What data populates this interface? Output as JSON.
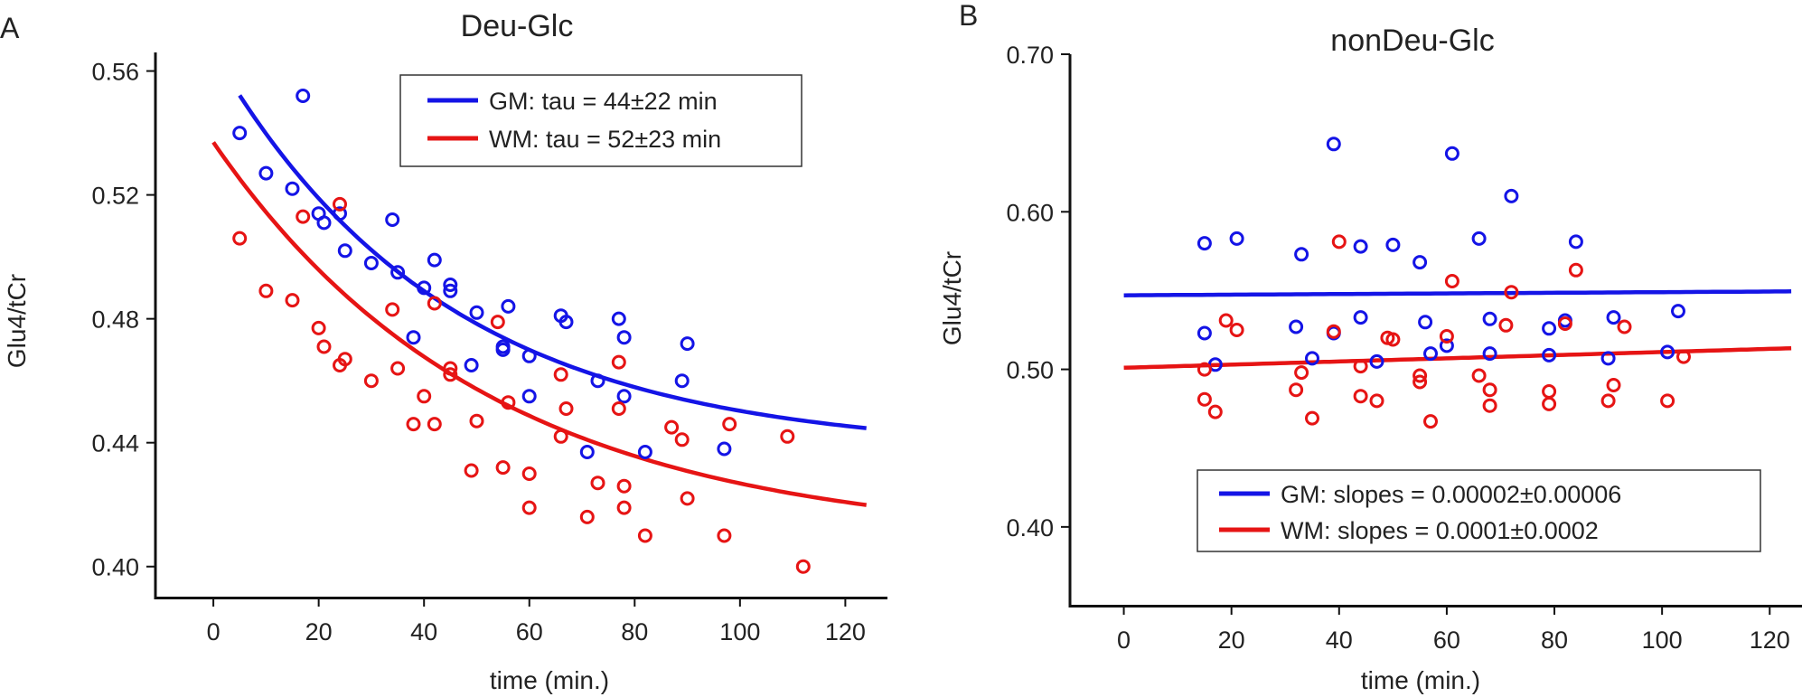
{
  "colors": {
    "gm": "#1414e6",
    "wm": "#e61414",
    "axis": "#111111"
  },
  "chart_data": [
    {
      "type": "scatter",
      "panel": "A",
      "title": "Deu-Glc",
      "xlabel": "time (min.)",
      "ylabel": "Glu4/tCr",
      "xlim": [
        -11,
        128
      ],
      "ylim": [
        0.39,
        0.566
      ],
      "xticks": [
        0,
        20,
        40,
        60,
        80,
        100,
        120
      ],
      "yticks": [
        0.4,
        0.44,
        0.48,
        0.52,
        0.56
      ],
      "ytick_labels": [
        "0.40",
        "0.44",
        "0.48",
        "0.52",
        "0.56"
      ],
      "legend": [
        {
          "label": "GM: tau = 44±22 min",
          "color": "#1414e6"
        },
        {
          "label": "WM: tau = 52±23 min",
          "color": "#e61414"
        }
      ],
      "fits": [
        {
          "name": "GM",
          "kind": "exp",
          "A": 0.129,
          "tau": 44,
          "C": 0.437,
          "x_from": 5,
          "x_to": 124,
          "color": "#1414e6"
        },
        {
          "name": "WM",
          "kind": "exp",
          "A": 0.129,
          "tau": 52,
          "C": 0.408,
          "x_from": 0,
          "x_to": 124,
          "color": "#e61414"
        }
      ],
      "series": [
        {
          "name": "GM",
          "color": "#1414e6",
          "x": [
            5,
            10,
            15,
            17,
            20,
            21,
            24,
            25,
            30,
            34,
            35,
            38,
            40,
            42,
            45,
            45,
            50,
            49,
            56,
            55,
            55,
            60,
            60,
            66,
            67,
            71,
            73,
            77,
            78,
            78,
            82,
            89,
            90,
            97
          ],
          "y": [
            0.54,
            0.527,
            0.522,
            0.552,
            0.514,
            0.511,
            0.514,
            0.502,
            0.498,
            0.512,
            0.495,
            0.474,
            0.49,
            0.499,
            0.491,
            0.489,
            0.482,
            0.465,
            0.484,
            0.471,
            0.47,
            0.468,
            0.455,
            0.481,
            0.479,
            0.437,
            0.46,
            0.48,
            0.474,
            0.455,
            0.437,
            0.46,
            0.472,
            0.438
          ]
        },
        {
          "name": "WM",
          "color": "#e61414",
          "x": [
            5,
            10,
            15,
            17,
            20,
            21,
            24,
            24,
            25,
            30,
            34,
            35,
            38,
            40,
            42,
            42,
            45,
            45,
            49,
            50,
            54,
            55,
            56,
            60,
            60,
            66,
            66,
            67,
            71,
            73,
            77,
            77,
            78,
            78,
            82,
            87,
            89,
            90,
            97,
            98,
            109,
            112
          ],
          "y": [
            0.506,
            0.489,
            0.486,
            0.513,
            0.477,
            0.471,
            0.517,
            0.465,
            0.467,
            0.46,
            0.483,
            0.464,
            0.446,
            0.455,
            0.485,
            0.446,
            0.464,
            0.462,
            0.431,
            0.447,
            0.479,
            0.432,
            0.453,
            0.43,
            0.419,
            0.442,
            0.462,
            0.451,
            0.416,
            0.427,
            0.466,
            0.451,
            0.426,
            0.419,
            0.41,
            0.445,
            0.441,
            0.422,
            0.41,
            0.446,
            0.442,
            0.4
          ]
        }
      ]
    },
    {
      "type": "scatter",
      "panel": "B",
      "title": "nonDeu-Glc",
      "xlabel": "time (min.)",
      "ylabel": "Glu4/tCr",
      "xlim": [
        -10,
        126
      ],
      "ylim": [
        0.35,
        0.7
      ],
      "xticks": [
        0,
        20,
        40,
        60,
        80,
        100,
        120
      ],
      "yticks": [
        0.4,
        0.5,
        0.6,
        0.7
      ],
      "ytick_labels": [
        "0.40",
        "0.50",
        "0.60",
        "0.70"
      ],
      "legend": [
        {
          "label": "GM: slopes = 0.00002±0.00006",
          "color": "#1414e6"
        },
        {
          "label": "WM: slopes = 0.0001±0.0002",
          "color": "#e61414"
        }
      ],
      "fits": [
        {
          "name": "GM",
          "kind": "line",
          "intercept": 0.547,
          "slope": 2e-05,
          "x_from": 0,
          "x_to": 124,
          "color": "#1414e6"
        },
        {
          "name": "WM",
          "kind": "line",
          "intercept": 0.501,
          "slope": 0.0001,
          "x_from": 0,
          "x_to": 124,
          "color": "#e61414"
        }
      ],
      "series": [
        {
          "name": "GM",
          "color": "#1414e6",
          "x": [
            15,
            17,
            15,
            21,
            32,
            33,
            35,
            39,
            39,
            44,
            44,
            47,
            50,
            55,
            56,
            57,
            60,
            61,
            66,
            68,
            68,
            72,
            79,
            79,
            82,
            84,
            90,
            91,
            101,
            103
          ],
          "y": [
            0.58,
            0.503,
            0.523,
            0.583,
            0.527,
            0.573,
            0.507,
            0.523,
            0.643,
            0.578,
            0.533,
            0.505,
            0.579,
            0.568,
            0.53,
            0.51,
            0.515,
            0.637,
            0.583,
            0.51,
            0.532,
            0.61,
            0.526,
            0.509,
            0.531,
            0.581,
            0.507,
            0.533,
            0.511,
            0.537
          ]
        },
        {
          "name": "WM",
          "color": "#e61414",
          "x": [
            15,
            15,
            17,
            19,
            21,
            32,
            33,
            35,
            39,
            40,
            44,
            44,
            47,
            49,
            50,
            55,
            55,
            57,
            60,
            61,
            66,
            68,
            68,
            71,
            72,
            79,
            79,
            82,
            84,
            90,
            91,
            93,
            101,
            104
          ],
          "y": [
            0.5,
            0.481,
            0.473,
            0.531,
            0.525,
            0.487,
            0.498,
            0.469,
            0.524,
            0.581,
            0.502,
            0.483,
            0.48,
            0.52,
            0.519,
            0.496,
            0.492,
            0.467,
            0.521,
            0.556,
            0.496,
            0.487,
            0.477,
            0.528,
            0.549,
            0.486,
            0.478,
            0.529,
            0.563,
            0.48,
            0.49,
            0.527,
            0.48,
            0.508
          ]
        }
      ]
    }
  ]
}
